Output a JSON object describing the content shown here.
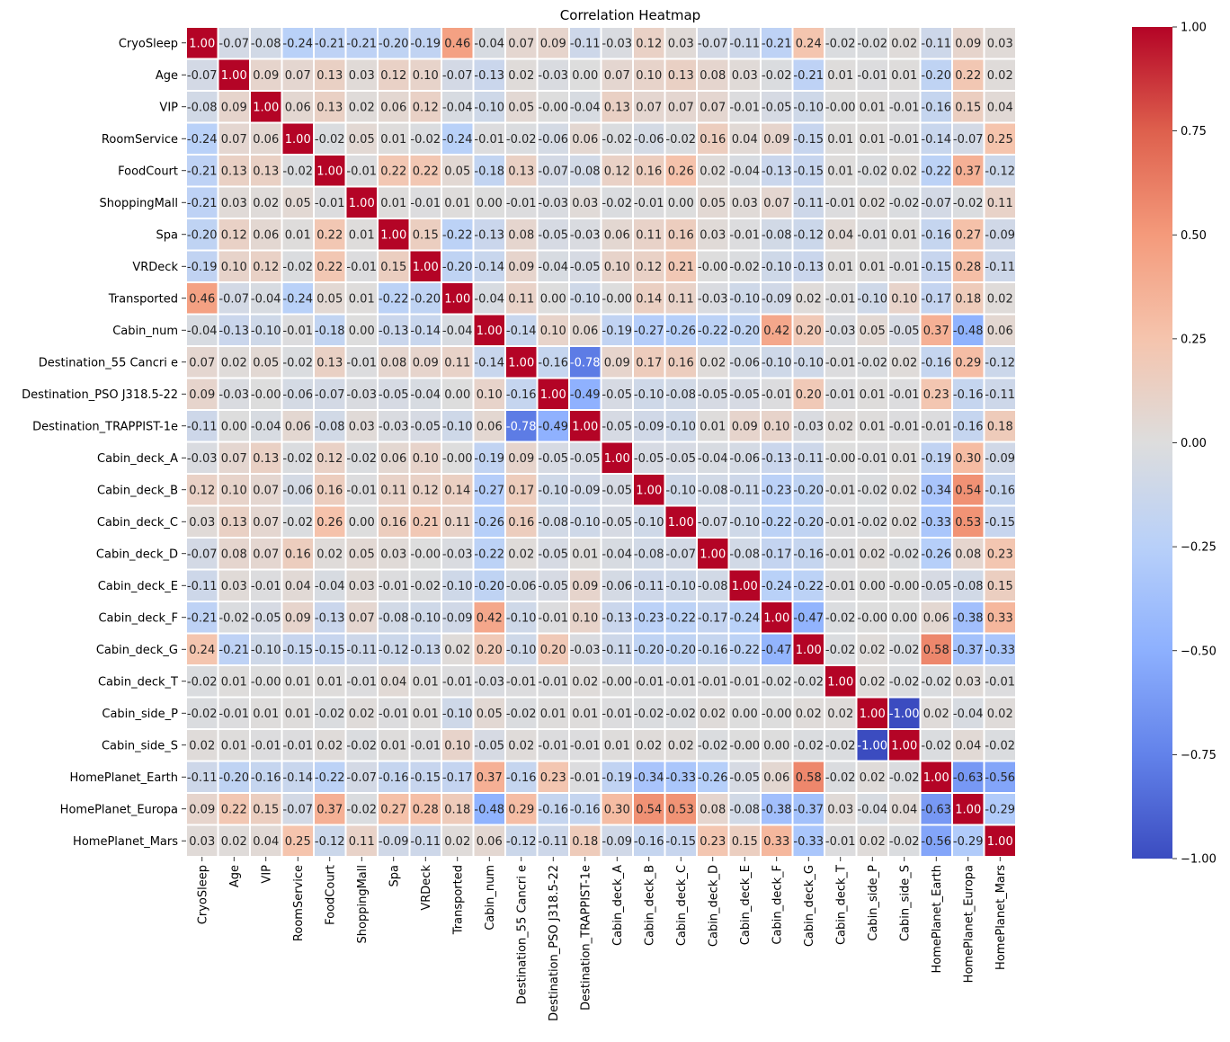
{
  "chart_data": {
    "type": "heatmap",
    "title": "Correlation Heatmap",
    "colormap": "coolwarm",
    "vmin": -1.0,
    "vmax": 1.0,
    "colorbar_ticks": [
      "1.00",
      "0.75",
      "0.50",
      "0.25",
      "0.00",
      "−0.25",
      "−0.50",
      "−0.75",
      "−1.00"
    ],
    "colorbar_tick_values": [
      1.0,
      0.75,
      0.5,
      0.25,
      0.0,
      -0.25,
      -0.5,
      -0.75,
      -1.0
    ],
    "labels": [
      "CryoSleep",
      "Age",
      "VIP",
      "RoomService",
      "FoodCourt",
      "ShoppingMall",
      "Spa",
      "VRDeck",
      "Transported",
      "Cabin_num",
      "Destination_55 Cancri e",
      "Destination_PSO J318.5-22",
      "Destination_TRAPPIST-1e",
      "Cabin_deck_A",
      "Cabin_deck_B",
      "Cabin_deck_C",
      "Cabin_deck_D",
      "Cabin_deck_E",
      "Cabin_deck_F",
      "Cabin_deck_G",
      "Cabin_deck_T",
      "Cabin_side_P",
      "Cabin_side_S",
      "HomePlanet_Earth",
      "HomePlanet_Europa",
      "HomePlanet_Mars"
    ],
    "cells": [
      [
        "1.00",
        "-0.07",
        "-0.08",
        "-0.24",
        "-0.21",
        "-0.21",
        "-0.20",
        "-0.19",
        "0.46",
        "-0.04",
        "0.07",
        "0.09",
        "-0.11",
        "-0.03",
        "0.12",
        "0.03",
        "-0.07",
        "-0.11",
        "-0.21",
        "0.24",
        "-0.02",
        "-0.02",
        "0.02",
        "-0.11",
        "0.09",
        "0.03"
      ],
      [
        "-0.07",
        "1.00",
        "0.09",
        "0.07",
        "0.13",
        "0.03",
        "0.12",
        "0.10",
        "-0.07",
        "-0.13",
        "0.02",
        "-0.03",
        "0.00",
        "0.07",
        "0.10",
        "0.13",
        "0.08",
        "0.03",
        "-0.02",
        "-0.21",
        "0.01",
        "-0.01",
        "0.01",
        "-0.20",
        "0.22",
        "0.02"
      ],
      [
        "-0.08",
        "0.09",
        "1.00",
        "0.06",
        "0.13",
        "0.02",
        "0.06",
        "0.12",
        "-0.04",
        "-0.10",
        "0.05",
        "-0.00",
        "-0.04",
        "0.13",
        "0.07",
        "0.07",
        "0.07",
        "-0.01",
        "-0.05",
        "-0.10",
        "-0.00",
        "0.01",
        "-0.01",
        "-0.16",
        "0.15",
        "0.04"
      ],
      [
        "-0.24",
        "0.07",
        "0.06",
        "1.00",
        "-0.02",
        "0.05",
        "0.01",
        "-0.02",
        "-0.24",
        "-0.01",
        "-0.02",
        "-0.06",
        "0.06",
        "-0.02",
        "-0.06",
        "-0.02",
        "0.16",
        "0.04",
        "0.09",
        "-0.15",
        "0.01",
        "0.01",
        "-0.01",
        "-0.14",
        "-0.07",
        "0.25"
      ],
      [
        "-0.21",
        "0.13",
        "0.13",
        "-0.02",
        "1.00",
        "-0.01",
        "0.22",
        "0.22",
        "0.05",
        "-0.18",
        "0.13",
        "-0.07",
        "-0.08",
        "0.12",
        "0.16",
        "0.26",
        "0.02",
        "-0.04",
        "-0.13",
        "-0.15",
        "0.01",
        "-0.02",
        "0.02",
        "-0.22",
        "0.37",
        "-0.12"
      ],
      [
        "-0.21",
        "0.03",
        "0.02",
        "0.05",
        "-0.01",
        "1.00",
        "0.01",
        "-0.01",
        "0.01",
        "0.00",
        "-0.01",
        "-0.03",
        "0.03",
        "-0.02",
        "-0.01",
        "0.00",
        "0.05",
        "0.03",
        "0.07",
        "-0.11",
        "-0.01",
        "0.02",
        "-0.02",
        "-0.07",
        "-0.02",
        "0.11"
      ],
      [
        "-0.20",
        "0.12",
        "0.06",
        "0.01",
        "0.22",
        "0.01",
        "1.00",
        "0.15",
        "-0.22",
        "-0.13",
        "0.08",
        "-0.05",
        "-0.03",
        "0.06",
        "0.11",
        "0.16",
        "0.03",
        "-0.01",
        "-0.08",
        "-0.12",
        "0.04",
        "-0.01",
        "0.01",
        "-0.16",
        "0.27",
        "-0.09"
      ],
      [
        "-0.19",
        "0.10",
        "0.12",
        "-0.02",
        "0.22",
        "-0.01",
        "0.15",
        "1.00",
        "-0.20",
        "-0.14",
        "0.09",
        "-0.04",
        "-0.05",
        "0.10",
        "0.12",
        "0.21",
        "-0.00",
        "-0.02",
        "-0.10",
        "-0.13",
        "0.01",
        "0.01",
        "-0.01",
        "-0.15",
        "0.28",
        "-0.11"
      ],
      [
        "0.46",
        "-0.07",
        "-0.04",
        "-0.24",
        "0.05",
        "0.01",
        "-0.22",
        "-0.20",
        "1.00",
        "-0.04",
        "0.11",
        "0.00",
        "-0.10",
        "-0.00",
        "0.14",
        "0.11",
        "-0.03",
        "-0.10",
        "-0.09",
        "0.02",
        "-0.01",
        "-0.10",
        "0.10",
        "-0.17",
        "0.18",
        "0.02"
      ],
      [
        "-0.04",
        "-0.13",
        "-0.10",
        "-0.01",
        "-0.18",
        "0.00",
        "-0.13",
        "-0.14",
        "-0.04",
        "1.00",
        "-0.14",
        "0.10",
        "0.06",
        "-0.19",
        "-0.27",
        "-0.26",
        "-0.22",
        "-0.20",
        "0.42",
        "0.20",
        "-0.03",
        "0.05",
        "-0.05",
        "0.37",
        "-0.48",
        "0.06"
      ],
      [
        "0.07",
        "0.02",
        "0.05",
        "-0.02",
        "0.13",
        "-0.01",
        "0.08",
        "0.09",
        "0.11",
        "-0.14",
        "1.00",
        "-0.16",
        "-0.78",
        "0.09",
        "0.17",
        "0.16",
        "0.02",
        "-0.06",
        "-0.10",
        "-0.10",
        "-0.01",
        "-0.02",
        "0.02",
        "-0.16",
        "0.29",
        "-0.12"
      ],
      [
        "0.09",
        "-0.03",
        "-0.00",
        "-0.06",
        "-0.07",
        "-0.03",
        "-0.05",
        "-0.04",
        "0.00",
        "0.10",
        "-0.16",
        "1.00",
        "-0.49",
        "-0.05",
        "-0.10",
        "-0.08",
        "-0.05",
        "-0.05",
        "-0.01",
        "0.20",
        "-0.01",
        "0.01",
        "-0.01",
        "0.23",
        "-0.16",
        "-0.11"
      ],
      [
        "-0.11",
        "0.00",
        "-0.04",
        "0.06",
        "-0.08",
        "0.03",
        "-0.03",
        "-0.05",
        "-0.10",
        "0.06",
        "-0.78",
        "-0.49",
        "1.00",
        "-0.05",
        "-0.09",
        "-0.10",
        "0.01",
        "0.09",
        "0.10",
        "-0.03",
        "0.02",
        "0.01",
        "-0.01",
        "-0.01",
        "-0.16",
        "0.18"
      ],
      [
        "-0.03",
        "0.07",
        "0.13",
        "-0.02",
        "0.12",
        "-0.02",
        "0.06",
        "0.10",
        "-0.00",
        "-0.19",
        "0.09",
        "-0.05",
        "-0.05",
        "1.00",
        "-0.05",
        "-0.05",
        "-0.04",
        "-0.06",
        "-0.13",
        "-0.11",
        "-0.00",
        "-0.01",
        "0.01",
        "-0.19",
        "0.30",
        "-0.09"
      ],
      [
        "0.12",
        "0.10",
        "0.07",
        "-0.06",
        "0.16",
        "-0.01",
        "0.11",
        "0.12",
        "0.14",
        "-0.27",
        "0.17",
        "-0.10",
        "-0.09",
        "-0.05",
        "1.00",
        "-0.10",
        "-0.08",
        "-0.11",
        "-0.23",
        "-0.20",
        "-0.01",
        "-0.02",
        "0.02",
        "-0.34",
        "0.54",
        "-0.16"
      ],
      [
        "0.03",
        "0.13",
        "0.07",
        "-0.02",
        "0.26",
        "0.00",
        "0.16",
        "0.21",
        "0.11",
        "-0.26",
        "0.16",
        "-0.08",
        "-0.10",
        "-0.05",
        "-0.10",
        "1.00",
        "-0.07",
        "-0.10",
        "-0.22",
        "-0.20",
        "-0.01",
        "-0.02",
        "0.02",
        "-0.33",
        "0.53",
        "-0.15"
      ],
      [
        "-0.07",
        "0.08",
        "0.07",
        "0.16",
        "0.02",
        "0.05",
        "0.03",
        "-0.00",
        "-0.03",
        "-0.22",
        "0.02",
        "-0.05",
        "0.01",
        "-0.04",
        "-0.08",
        "-0.07",
        "1.00",
        "-0.08",
        "-0.17",
        "-0.16",
        "-0.01",
        "0.02",
        "-0.02",
        "-0.26",
        "0.08",
        "0.23"
      ],
      [
        "-0.11",
        "0.03",
        "-0.01",
        "0.04",
        "-0.04",
        "0.03",
        "-0.01",
        "-0.02",
        "-0.10",
        "-0.20",
        "-0.06",
        "-0.05",
        "0.09",
        "-0.06",
        "-0.11",
        "-0.10",
        "-0.08",
        "1.00",
        "-0.24",
        "-0.22",
        "-0.01",
        "0.00",
        "-0.00",
        "-0.05",
        "-0.08",
        "0.15"
      ],
      [
        "-0.21",
        "-0.02",
        "-0.05",
        "0.09",
        "-0.13",
        "0.07",
        "-0.08",
        "-0.10",
        "-0.09",
        "0.42",
        "-0.10",
        "-0.01",
        "0.10",
        "-0.13",
        "-0.23",
        "-0.22",
        "-0.17",
        "-0.24",
        "1.00",
        "-0.47",
        "-0.02",
        "-0.00",
        "0.00",
        "0.06",
        "-0.38",
        "0.33"
      ],
      [
        "0.24",
        "-0.21",
        "-0.10",
        "-0.15",
        "-0.15",
        "-0.11",
        "-0.12",
        "-0.13",
        "0.02",
        "0.20",
        "-0.10",
        "0.20",
        "-0.03",
        "-0.11",
        "-0.20",
        "-0.20",
        "-0.16",
        "-0.22",
        "-0.47",
        "1.00",
        "-0.02",
        "0.02",
        "-0.02",
        "0.58",
        "-0.37",
        "-0.33"
      ],
      [
        "-0.02",
        "0.01",
        "-0.00",
        "0.01",
        "0.01",
        "-0.01",
        "0.04",
        "0.01",
        "-0.01",
        "-0.03",
        "-0.01",
        "-0.01",
        "0.02",
        "-0.00",
        "-0.01",
        "-0.01",
        "-0.01",
        "-0.01",
        "-0.02",
        "-0.02",
        "1.00",
        "0.02",
        "-0.02",
        "-0.02",
        "0.03",
        "-0.01"
      ],
      [
        "-0.02",
        "-0.01",
        "0.01",
        "0.01",
        "-0.02",
        "0.02",
        "-0.01",
        "0.01",
        "-0.10",
        "0.05",
        "-0.02",
        "0.01",
        "0.01",
        "-0.01",
        "-0.02",
        "-0.02",
        "0.02",
        "0.00",
        "-0.00",
        "0.02",
        "0.02",
        "1.00",
        "-1.00",
        "0.02",
        "-0.04",
        "0.02"
      ],
      [
        "0.02",
        "0.01",
        "-0.01",
        "-0.01",
        "0.02",
        "-0.02",
        "0.01",
        "-0.01",
        "0.10",
        "-0.05",
        "0.02",
        "-0.01",
        "-0.01",
        "0.01",
        "0.02",
        "0.02",
        "-0.02",
        "-0.00",
        "0.00",
        "-0.02",
        "-0.02",
        "-1.00",
        "1.00",
        "-0.02",
        "0.04",
        "-0.02"
      ],
      [
        "-0.11",
        "-0.20",
        "-0.16",
        "-0.14",
        "-0.22",
        "-0.07",
        "-0.16",
        "-0.15",
        "-0.17",
        "0.37",
        "-0.16",
        "0.23",
        "-0.01",
        "-0.19",
        "-0.34",
        "-0.33",
        "-0.26",
        "-0.05",
        "0.06",
        "0.58",
        "-0.02",
        "0.02",
        "-0.02",
        "1.00",
        "-0.63",
        "-0.56"
      ],
      [
        "0.09",
        "0.22",
        "0.15",
        "-0.07",
        "0.37",
        "-0.02",
        "0.27",
        "0.28",
        "0.18",
        "-0.48",
        "0.29",
        "-0.16",
        "-0.16",
        "0.30",
        "0.54",
        "0.53",
        "0.08",
        "-0.08",
        "-0.38",
        "-0.37",
        "0.03",
        "-0.04",
        "0.04",
        "-0.63",
        "1.00",
        "-0.29"
      ],
      [
        "0.03",
        "0.02",
        "0.04",
        "0.25",
        "-0.12",
        "0.11",
        "-0.09",
        "-0.11",
        "0.02",
        "0.06",
        "-0.12",
        "-0.11",
        "0.18",
        "-0.09",
        "-0.16",
        "-0.15",
        "0.23",
        "0.15",
        "0.33",
        "-0.33",
        "-0.01",
        "0.02",
        "-0.02",
        "-0.56",
        "-0.29",
        "1.00"
      ]
    ]
  }
}
